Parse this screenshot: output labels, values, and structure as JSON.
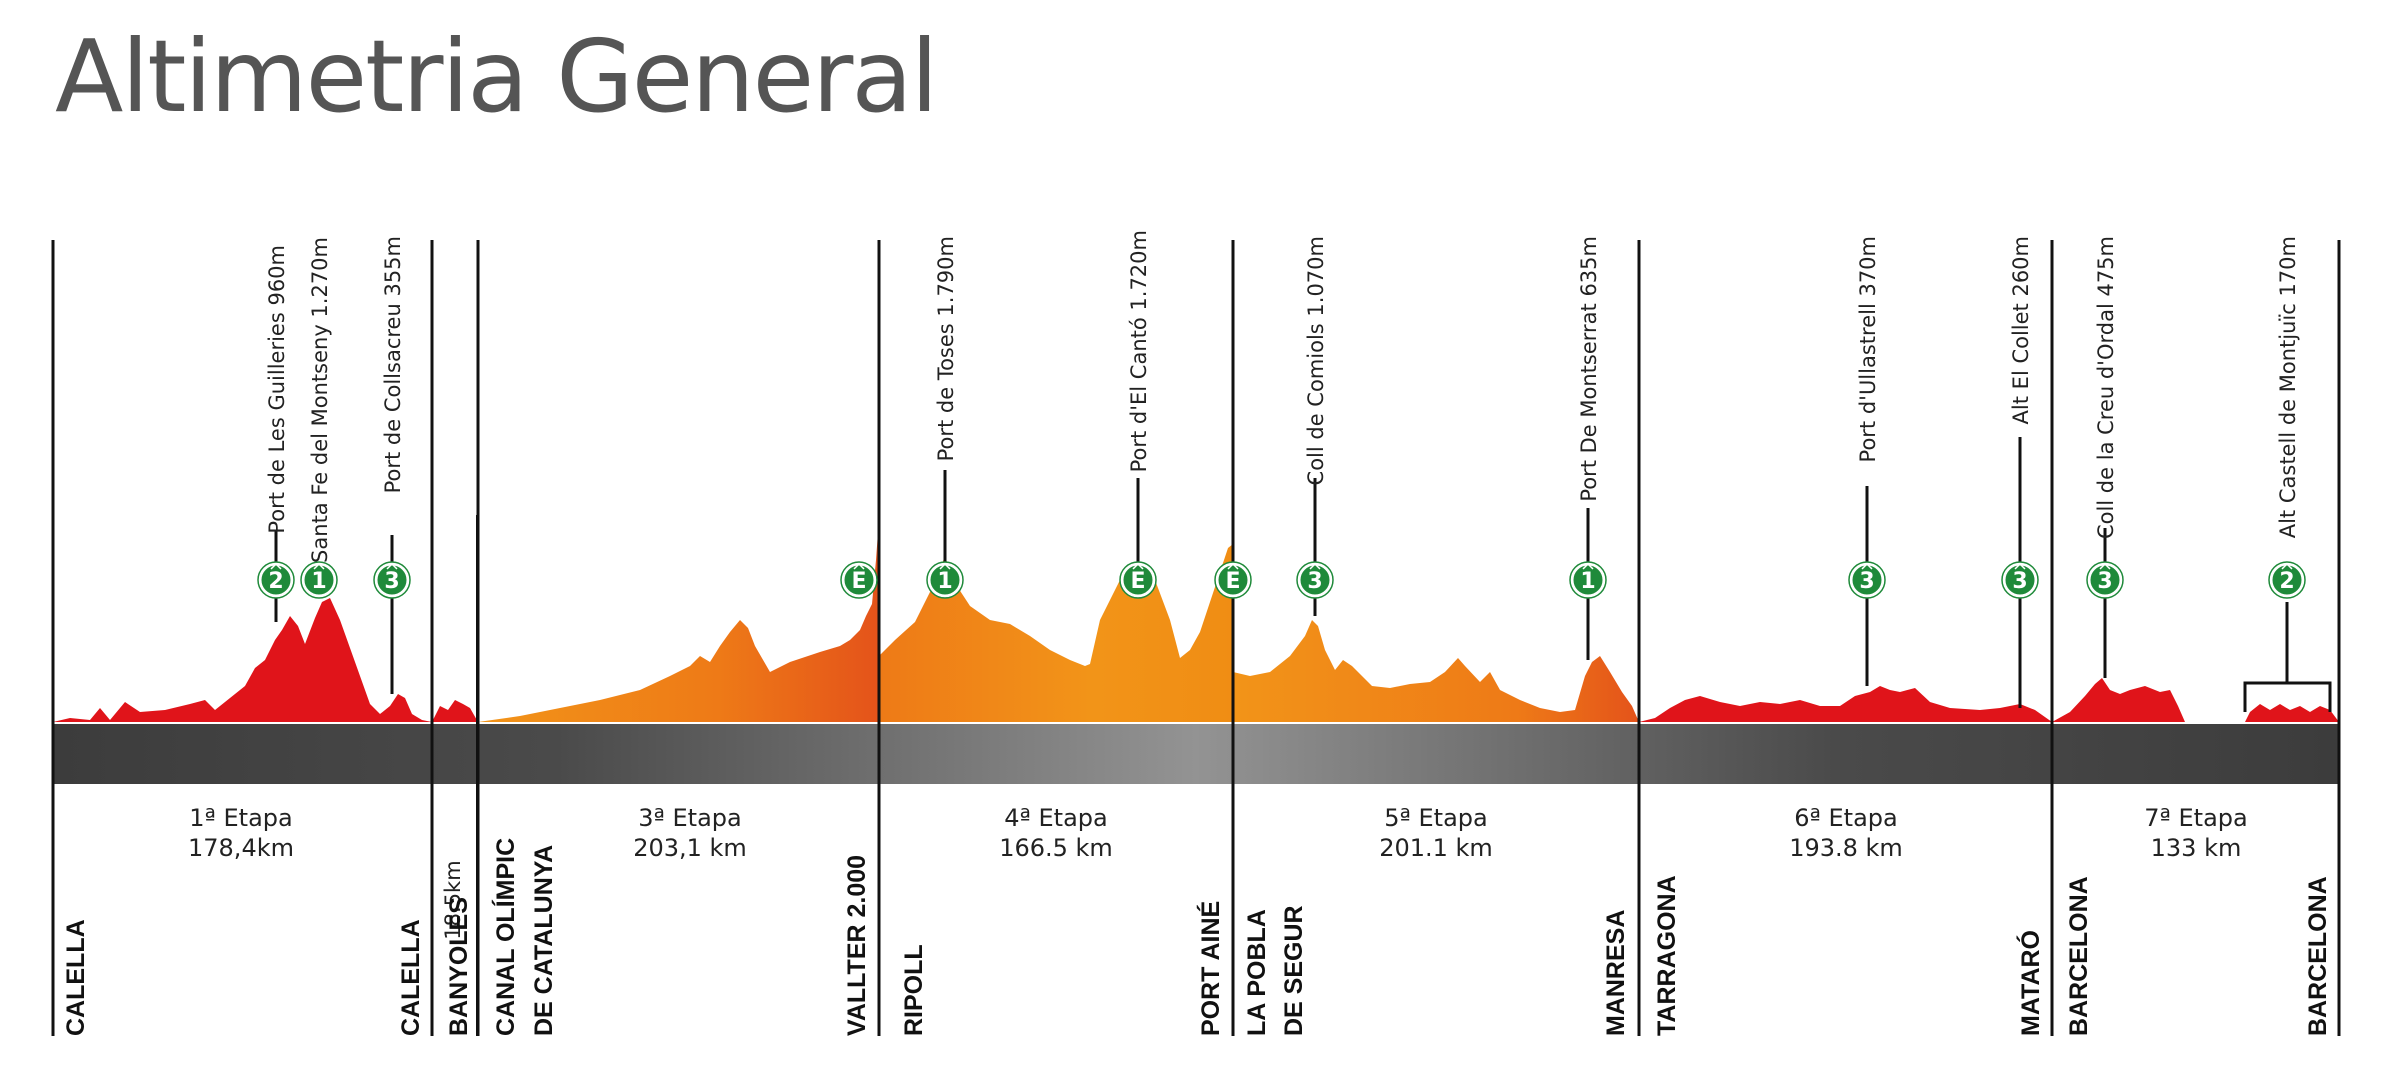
{
  "title": "Altimetria General",
  "colors": {
    "red": "#e0141a",
    "orange": "#f08a12",
    "orange_dark": "#e84e16",
    "band_dark": "#3c3c3c",
    "band_light": "#8e8e8e",
    "climb_badge": "#1f8a3a",
    "text": "#222222"
  },
  "stages": [
    {
      "name": "1ª Etapa",
      "distance": "178,4km",
      "start": "CALELLA",
      "finish": "CALELLA",
      "color": "red",
      "climbs": [
        {
          "label": "Port de Les Guilleries  960m",
          "category": "2"
        },
        {
          "label": "Santa Fe del Montseny 1.270m",
          "category": "1"
        },
        {
          "label": "Port de Collsacreu 355m",
          "category": "3"
        }
      ]
    },
    {
      "name": "",
      "distance": "18.5km",
      "start": "BANYOLES",
      "finish": "",
      "color": "red",
      "climbs": []
    },
    {
      "name": "3ª Etapa",
      "distance": "203,1 km",
      "start": [
        "CANAL OLÍMPIC",
        "DE CATALUNYA"
      ],
      "finish": "VALLTER 2.000",
      "color": "orange",
      "climbs": [],
      "finish_badge": "E"
    },
    {
      "name": "4ª Etapa",
      "distance": "166.5 km",
      "start": "RIPOLL",
      "finish": "PORT AINÉ",
      "color": "orange",
      "climbs": [
        {
          "label": "Port de Toses 1.790m",
          "category": "1"
        },
        {
          "label": "Port d'El Cantó 1.720m",
          "category": "E"
        }
      ],
      "finish_badge": "E"
    },
    {
      "name": "5ª Etapa",
      "distance": "201.1 km",
      "start": [
        "LA POBLA",
        "DE SEGUR"
      ],
      "finish": "MANRESA",
      "color": "orange",
      "climbs": [
        {
          "label": "Coll de Comiols 1.070m",
          "category": "3"
        },
        {
          "label": "Port De Montserrat 635m",
          "category": "1"
        }
      ]
    },
    {
      "name": "6ª Etapa",
      "distance": "193.8 km",
      "start": "TARRAGONA",
      "finish": "MATARÓ",
      "color": "red",
      "climbs": [
        {
          "label": "Port d'Ullastrell 370m",
          "category": "3"
        },
        {
          "label": "Alt El Collet 260m",
          "category": "3"
        }
      ]
    },
    {
      "name": "7ª Etapa",
      "distance": "133 km",
      "start": "BARCELONA",
      "finish": "BARCELONA",
      "color": "red",
      "climbs": [
        {
          "label": "Coll de la Creu d'Ordal 475m",
          "category": "3"
        },
        {
          "label": "Alt  Castell de Montjuïc 170m",
          "category": "2"
        }
      ]
    }
  ]
}
